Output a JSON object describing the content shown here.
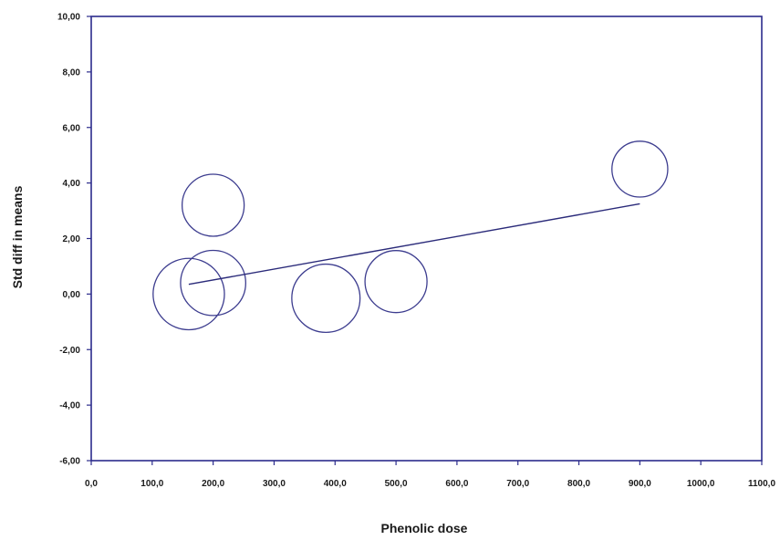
{
  "chart_data": {
    "type": "scatter",
    "title": "",
    "xlabel": "Phenolic dose",
    "ylabel": "Std diff in means",
    "xlim": [
      0,
      1100
    ],
    "ylim": [
      -6,
      10
    ],
    "x_ticks": [
      "0,0",
      "100,0",
      "200,0",
      "300,0",
      "400,0",
      "500,0",
      "600,0",
      "700,0",
      "800,0",
      "900,0",
      "1000,0",
      "1100,0"
    ],
    "x_tick_values": [
      0,
      100,
      200,
      300,
      400,
      500,
      600,
      700,
      800,
      900,
      1000,
      1100
    ],
    "y_ticks": [
      "-6,00",
      "-4,00",
      "-2,00",
      "0,00",
      "2,00",
      "4,00",
      "6,00",
      "8,00",
      "10,00"
    ],
    "y_tick_values": [
      -6,
      -4,
      -2,
      0,
      2,
      4,
      6,
      8,
      10
    ],
    "grid": false,
    "points": [
      {
        "x": 160,
        "y": 0.0,
        "weight": 1.15
      },
      {
        "x": 200,
        "y": 0.4,
        "weight": 1.05
      },
      {
        "x": 200,
        "y": 3.2,
        "weight": 1.0
      },
      {
        "x": 385,
        "y": -0.15,
        "weight": 1.1
      },
      {
        "x": 500,
        "y": 0.45,
        "weight": 1.0
      },
      {
        "x": 900,
        "y": 4.5,
        "weight": 0.9
      }
    ],
    "regression_line": {
      "x": [
        160,
        900
      ],
      "y": [
        0.35,
        3.25
      ]
    },
    "colors": {
      "axis": "#2b2b8c",
      "marker": "#3d3d8f",
      "line": "#2b2b7a"
    }
  }
}
